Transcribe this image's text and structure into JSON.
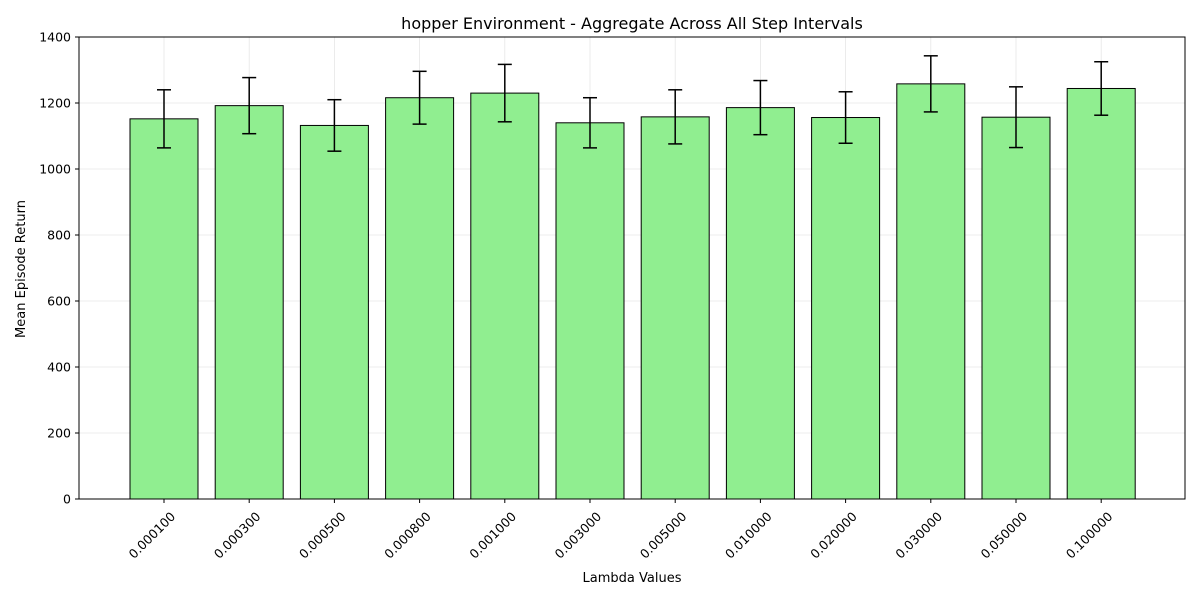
{
  "chart_data": {
    "type": "bar",
    "title": "hopper Environment - Aggregate Across All Step Intervals",
    "xlabel": "Lambda Values",
    "ylabel": "Mean Episode Return",
    "ylim": [
      0,
      1400
    ],
    "yticks": [
      0,
      200,
      400,
      600,
      800,
      1000,
      1200,
      1400
    ],
    "grid": true,
    "error_bars": true,
    "bar_color": "#90ee90",
    "edge_color": "#000000",
    "categories": [
      "0.000100",
      "0.000300",
      "0.000500",
      "0.000800",
      "0.001000",
      "0.003000",
      "0.005000",
      "0.010000",
      "0.020000",
      "0.030000",
      "0.050000",
      "0.100000"
    ],
    "values": [
      1152,
      1192,
      1132,
      1216,
      1230,
      1140,
      1158,
      1186,
      1156,
      1258,
      1157,
      1244
    ],
    "errors": [
      88,
      85,
      78,
      80,
      87,
      76,
      82,
      82,
      78,
      85,
      92,
      81
    ]
  }
}
